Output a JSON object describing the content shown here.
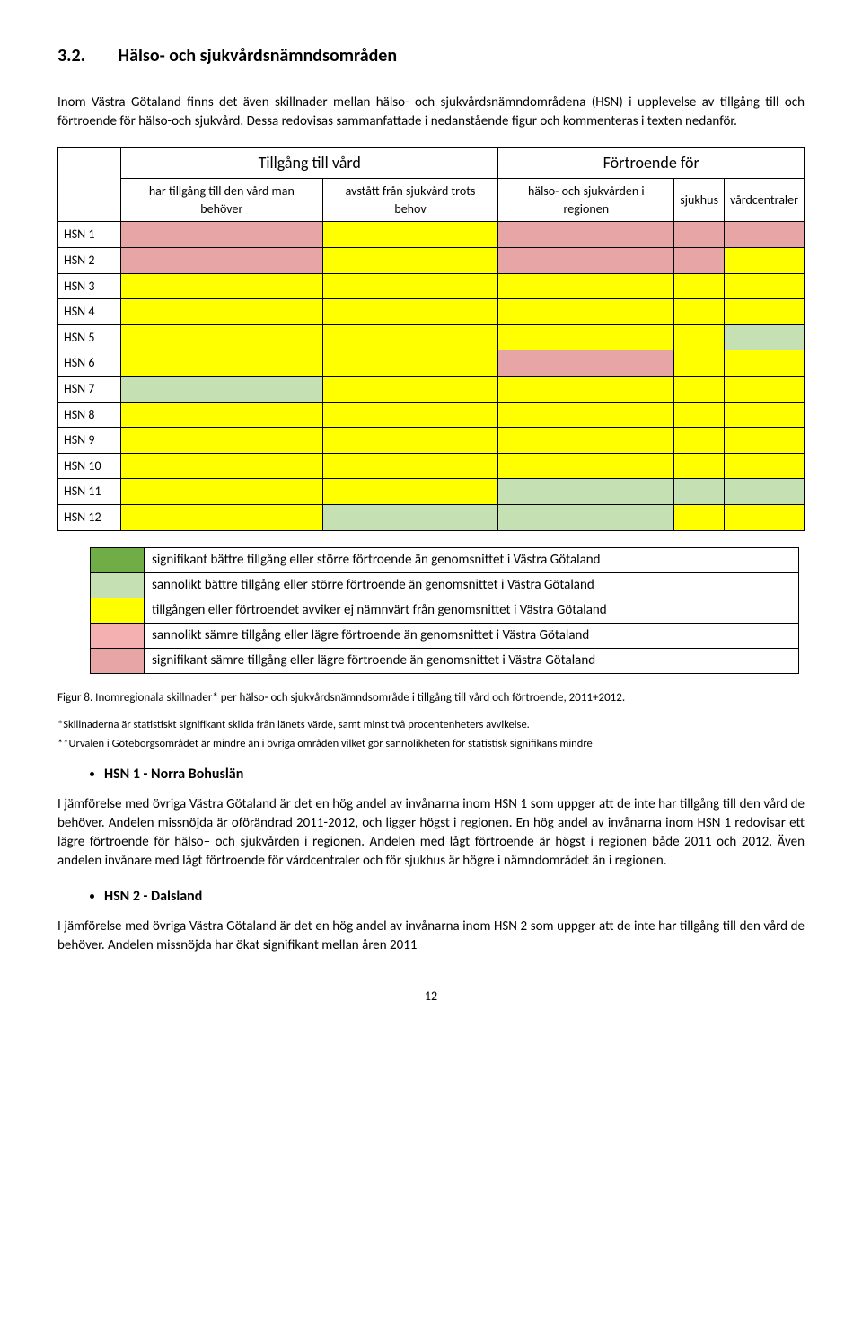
{
  "heading": {
    "number": "3.2.",
    "title": "Hälso- och sjukvårdsnämndsområden"
  },
  "para1": "Inom Västra Götaland finns det även skillnader mellan hälso- och sjukvårdsnämndområdena (HSN) i upplevelse av tillgång till och förtroende för hälso-och sjukvård. Dessa redovisas sammanfattade i nedanstående figur och kommenteras i texten nedanför.",
  "table": {
    "group_headers": [
      "Tillgång till vård",
      "Förtroende för"
    ],
    "sub_headers": [
      "har tillgång till den vård man behöver",
      "avstått från sjukvård trots behov",
      "hälso- och sjukvården i regionen",
      "sjukhus",
      "vårdcentraler"
    ],
    "rows": [
      {
        "label": "HSN 1",
        "cells": [
          "red",
          "yellow",
          "red",
          "red",
          "red"
        ]
      },
      {
        "label": "HSN 2",
        "cells": [
          "red",
          "yellow",
          "red",
          "red",
          "yellow"
        ]
      },
      {
        "label": "HSN 3",
        "cells": [
          "yellow",
          "yellow",
          "yellow",
          "yellow",
          "yellow"
        ]
      },
      {
        "label": "HSN 4",
        "cells": [
          "yellow",
          "yellow",
          "yellow",
          "yellow",
          "yellow"
        ]
      },
      {
        "label": "HSN 5",
        "cells": [
          "yellow",
          "yellow",
          "yellow",
          "yellow",
          "lightgreen"
        ]
      },
      {
        "label": "HSN 6",
        "cells": [
          "yellow",
          "yellow",
          "red",
          "yellow",
          "yellow"
        ]
      },
      {
        "label": "HSN 7",
        "cells": [
          "lightgreen",
          "yellow",
          "yellow",
          "yellow",
          "yellow"
        ]
      },
      {
        "label": "HSN 8",
        "cells": [
          "yellow",
          "yellow",
          "yellow",
          "yellow",
          "yellow"
        ]
      },
      {
        "label": "HSN 9",
        "cells": [
          "yellow",
          "yellow",
          "yellow",
          "yellow",
          "yellow"
        ]
      },
      {
        "label": "HSN 10",
        "cells": [
          "yellow",
          "yellow",
          "yellow",
          "yellow",
          "yellow"
        ]
      },
      {
        "label": "HSN 11",
        "cells": [
          "yellow",
          "yellow",
          "lightgreen",
          "lightgreen",
          "lightgreen"
        ]
      },
      {
        "label": "HSN 12",
        "cells": [
          "yellow",
          "lightgreen",
          "lightgreen",
          "yellow",
          "yellow"
        ]
      }
    ]
  },
  "legend": [
    {
      "color": "green",
      "text": "signifikant bättre tillgång eller större förtroende än genomsnittet i Västra Götaland"
    },
    {
      "color": "lightgreen",
      "text": "sannolikt bättre tillgång eller större förtroende än genomsnittet i Västra Götaland"
    },
    {
      "color": "yellow",
      "text": "tillgången eller förtroendet avviker ej nämnvärt från genomsnittet i Västra Götaland"
    },
    {
      "color": "lightred",
      "text": "sannolikt sämre tillgång eller lägre förtroende än genomsnittet i Västra Götaland"
    },
    {
      "color": "red",
      "text": "signifikant sämre tillgång eller lägre förtroende än genomsnittet i Västra Götaland"
    }
  ],
  "colors": {
    "green": "#70ad47",
    "lightgreen": "#c5e0b3",
    "yellow": "#ffff00",
    "lightred": "#f4b0b0",
    "red": "#e8a5a5"
  },
  "fig_caption": "Figur 8. Inomregionala skillnader* per hälso- och sjukvårdsnämndsområde i tillgång till vård och förtroende, 2011+2012.",
  "footnote1": "*Skillnaderna är statistiskt signifikant skilda från länets värde, samt minst två procentenheters avvikelse.",
  "footnote2": "**Urvalen i Göteborgsområdet är mindre än i övriga områden vilket gör sannolikheten för statistisk signifikans mindre",
  "subsection1": {
    "title": "HSN 1 - Norra Bohuslän"
  },
  "para_hsn1": "I jämförelse med övriga Västra Götaland är det en hög andel av invånarna inom HSN 1 som uppger att de inte har tillgång till den vård de behöver. Andelen missnöjda är oförändrad 2011-2012, och ligger högst i regionen. En hög andel av invånarna inom HSN 1 redovisar ett lägre förtroende för hälso– och sjukvården i regionen.  Andelen med lågt förtroende är högst i regionen både 2011 och 2012. Även andelen invånare med lågt förtroende för vårdcentraler och för sjukhus är högre i nämndområdet än i regionen.",
  "subsection2": {
    "title": "HSN 2 - Dalsland"
  },
  "para_hsn2": "I jämförelse med övriga Västra Götaland är det en hög andel av invånarna inom HSN 2 som uppger att de inte har tillgång till den vård de behöver. Andelen missnöjda har ökat signifikant mellan åren 2011",
  "page_number": "12"
}
